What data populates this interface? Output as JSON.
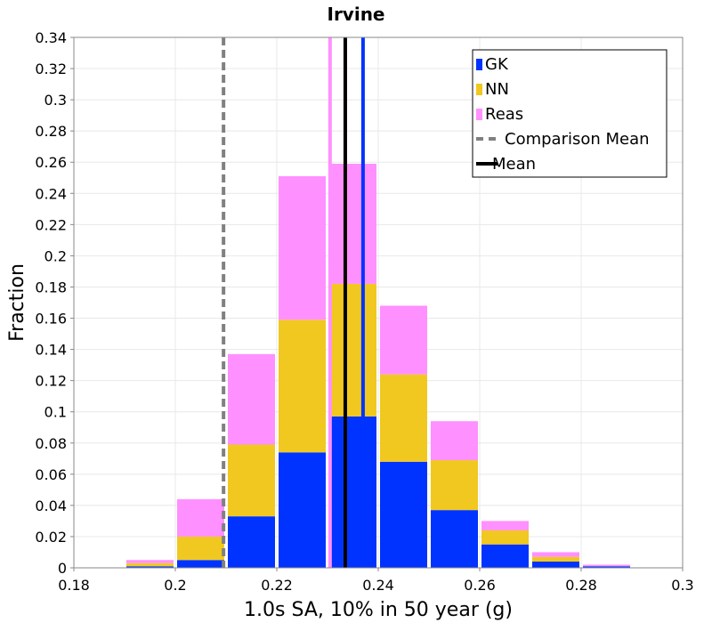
{
  "chart_data": {
    "type": "bar",
    "stacked": true,
    "title": "Irvine",
    "xlabel": "1.0s SA, 10% in 50 year (g)",
    "ylabel": "Fraction",
    "xlim": [
      0.18,
      0.3
    ],
    "ylim": [
      0,
      0.34
    ],
    "xticks": [
      "0.18",
      "0.2",
      "0.22",
      "0.24",
      "0.26",
      "0.28",
      "0.3"
    ],
    "yticks": [
      "0",
      "0.02",
      "0.04",
      "0.06",
      "0.08",
      "0.1",
      "0.12",
      "0.14",
      "0.16",
      "0.18",
      "0.2",
      "0.22",
      "0.24",
      "0.26",
      "0.28",
      "0.3",
      "0.32",
      "0.34"
    ],
    "grid": true,
    "bin_width": 0.01,
    "bin_starts": [
      0.18,
      0.19,
      0.2,
      0.21,
      0.22,
      0.23,
      0.24,
      0.25,
      0.26,
      0.27,
      0.28,
      0.29
    ],
    "series": [
      {
        "name": "GK",
        "color": "#0033ff",
        "values": [
          0.0,
          0.001,
          0.005,
          0.033,
          0.074,
          0.097,
          0.068,
          0.037,
          0.015,
          0.004,
          0.001,
          0.0
        ]
      },
      {
        "name": "NN",
        "color": "#f0c820",
        "values": [
          0.0,
          0.002,
          0.015,
          0.046,
          0.085,
          0.085,
          0.056,
          0.032,
          0.009,
          0.003,
          0.0,
          0.0
        ]
      },
      {
        "name": "Reas",
        "color": "#ff90ff",
        "values": [
          0.0,
          0.002,
          0.024,
          0.058,
          0.092,
          0.077,
          0.044,
          0.025,
          0.006,
          0.003,
          0.001,
          0.0
        ]
      }
    ],
    "lines": [
      {
        "name": "Comparison Mean",
        "x": 0.2095,
        "color": "#808080",
        "style": "dashed"
      },
      {
        "name": "Mean",
        "x": 0.2335,
        "color": "#000000",
        "style": "solid"
      }
    ],
    "mean_lines_by_series": [
      {
        "series": "GK",
        "x": 0.237,
        "color": "#0033ff"
      },
      {
        "series": "NN",
        "x": 0.2335,
        "color": "#f0c820"
      },
      {
        "series": "Reas",
        "x": 0.2305,
        "color": "#ff90ff"
      }
    ],
    "legend": {
      "position": "top-right",
      "entries": [
        {
          "label": "GK",
          "kind": "box",
          "color": "#0033ff"
        },
        {
          "label": "NN",
          "kind": "box",
          "color": "#f0c820"
        },
        {
          "label": "Reas",
          "kind": "box",
          "color": "#ff90ff"
        },
        {
          "label": "Comparison Mean",
          "kind": "dashed-line",
          "color": "#808080"
        },
        {
          "label": "Mean",
          "kind": "line",
          "color": "#000000"
        }
      ]
    }
  }
}
